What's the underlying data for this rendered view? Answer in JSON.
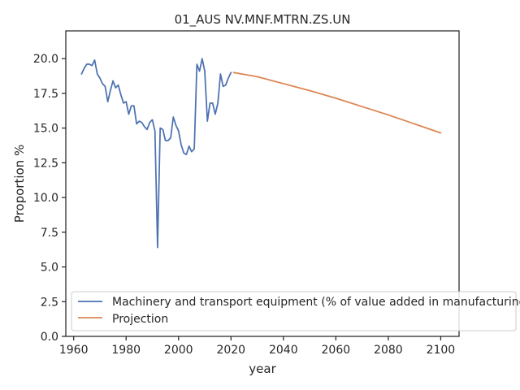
{
  "chart_data": {
    "type": "line",
    "title": "01_AUS NV.MNF.MTRN.ZS.UN",
    "xlabel": "year",
    "ylabel": "Proportion %",
    "xlim": [
      1957,
      2107
    ],
    "ylim": [
      0,
      22
    ],
    "xticks": [
      1960,
      1980,
      2000,
      2020,
      2040,
      2060,
      2080,
      2100
    ],
    "yticks": [
      0.0,
      2.5,
      5.0,
      7.5,
      10.0,
      12.5,
      15.0,
      17.5,
      20.0
    ],
    "grid": false,
    "legend_position": "lower-left",
    "colors": {
      "history": "#4c72b0",
      "projection": "#dd8452"
    },
    "series": [
      {
        "name": "Machinery and transport equipment (% of value added in manufacturing)",
        "x": [
          1963,
          1964,
          1965,
          1966,
          1967,
          1968,
          1969,
          1970,
          1971,
          1972,
          1973,
          1974,
          1975,
          1976,
          1977,
          1978,
          1979,
          1980,
          1981,
          1982,
          1983,
          1984,
          1985,
          1986,
          1987,
          1988,
          1989,
          1990,
          1991,
          1992,
          1993,
          1994,
          1995,
          1996,
          1997,
          1998,
          1999,
          2000,
          2001,
          2002,
          2003,
          2004,
          2005,
          2006,
          2007,
          2008,
          2009,
          2010,
          2011,
          2012,
          2013,
          2014,
          2015,
          2016,
          2017,
          2018,
          2019,
          2020
        ],
        "y": [
          18.9,
          19.3,
          19.6,
          19.6,
          19.5,
          19.9,
          18.9,
          18.6,
          18.2,
          18.0,
          16.9,
          17.7,
          18.4,
          17.9,
          18.1,
          17.4,
          16.8,
          16.9,
          16.0,
          16.6,
          16.6,
          15.3,
          15.5,
          15.4,
          15.1,
          14.9,
          15.4,
          15.6,
          14.8,
          6.4,
          15.0,
          14.9,
          14.1,
          14.1,
          14.3,
          15.8,
          15.2,
          14.8,
          13.8,
          13.2,
          13.1,
          13.7,
          13.3,
          13.5,
          19.6,
          19.1,
          20.0,
          19.1,
          15.5,
          16.8,
          16.8,
          16.0,
          16.8,
          18.9,
          18.0,
          18.1,
          18.6,
          19.0
        ]
      },
      {
        "name": "Projection",
        "x": [
          2021,
          2030,
          2040,
          2050,
          2060,
          2070,
          2080,
          2090,
          2100
        ],
        "y": [
          19.0,
          18.7,
          18.2,
          17.7,
          17.15,
          16.55,
          15.95,
          15.3,
          14.65
        ]
      }
    ]
  }
}
